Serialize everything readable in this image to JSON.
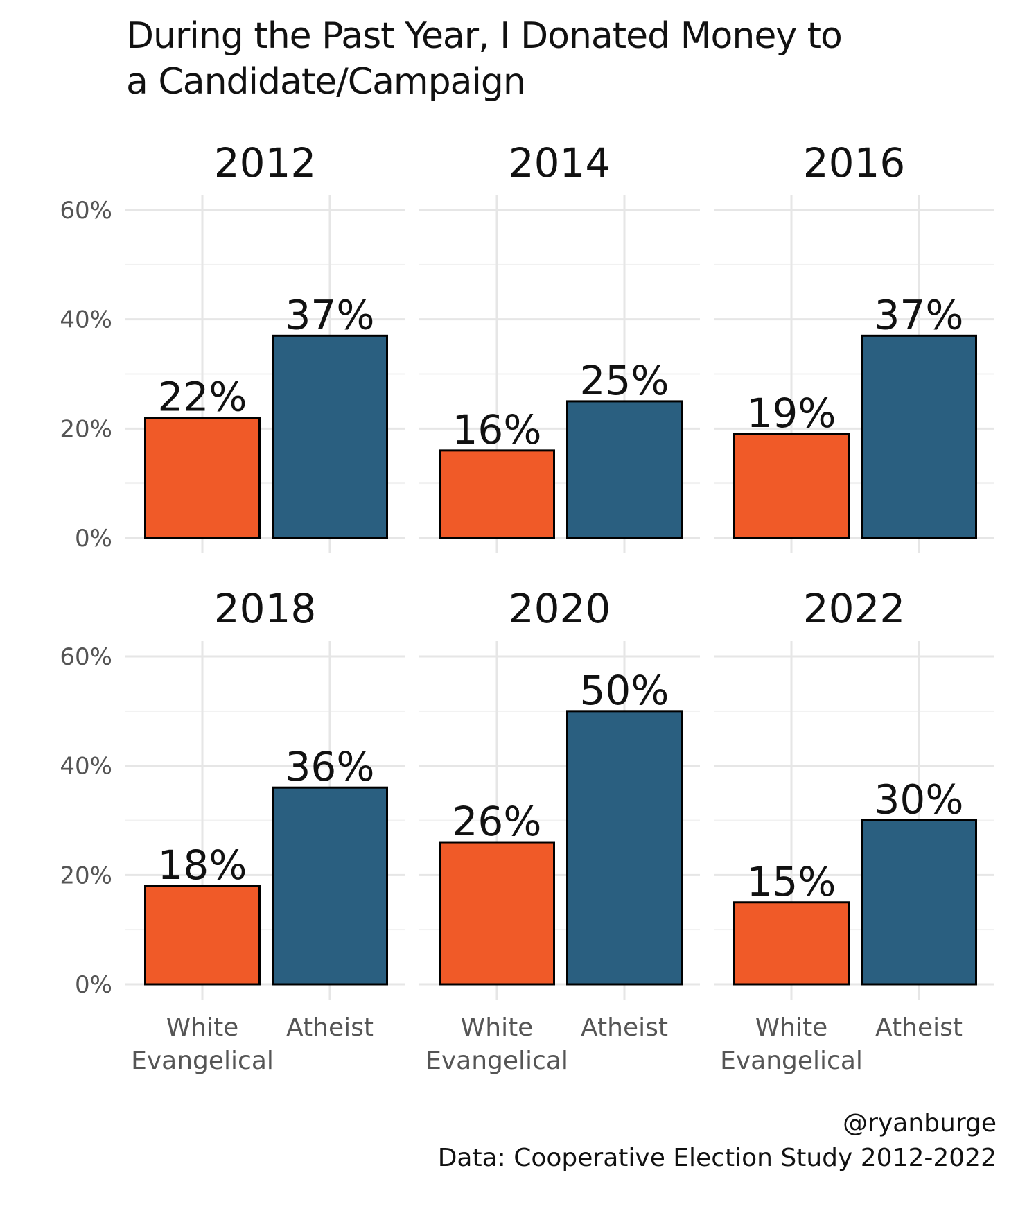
{
  "chart_data": {
    "type": "bar",
    "title_lines": [
      "During the Past Year, I Donated Money to",
      "a Candidate/Campaign"
    ],
    "caption_lines": [
      "@ryanburge",
      "Data: Cooperative Election Study 2012-2022"
    ],
    "categories": [
      "White Evangelical",
      "Atheist"
    ],
    "category_label_lines": [
      [
        "White",
        "Evangelical"
      ],
      [
        "Atheist"
      ]
    ],
    "colors": [
      "#F05A28",
      "#2A5F80"
    ],
    "y_ticks": [
      "0%",
      "20%",
      "40%",
      "60%"
    ],
    "y_tick_values": [
      0,
      20,
      40,
      60
    ],
    "ylim": [
      0,
      60
    ],
    "grid": true,
    "panels": [
      {
        "label": "2012",
        "values": [
          22,
          37
        ],
        "labels": [
          "22%",
          "37%"
        ]
      },
      {
        "label": "2014",
        "values": [
          16,
          25
        ],
        "labels": [
          "16%",
          "25%"
        ]
      },
      {
        "label": "2016",
        "values": [
          19,
          37
        ],
        "labels": [
          "19%",
          "37%"
        ]
      },
      {
        "label": "2018",
        "values": [
          18,
          36
        ],
        "labels": [
          "18%",
          "36%"
        ]
      },
      {
        "label": "2020",
        "values": [
          26,
          50
        ],
        "labels": [
          "26%",
          "50%"
        ]
      },
      {
        "label": "2022",
        "values": [
          15,
          30
        ],
        "labels": [
          "15%",
          "30%"
        ]
      }
    ]
  }
}
